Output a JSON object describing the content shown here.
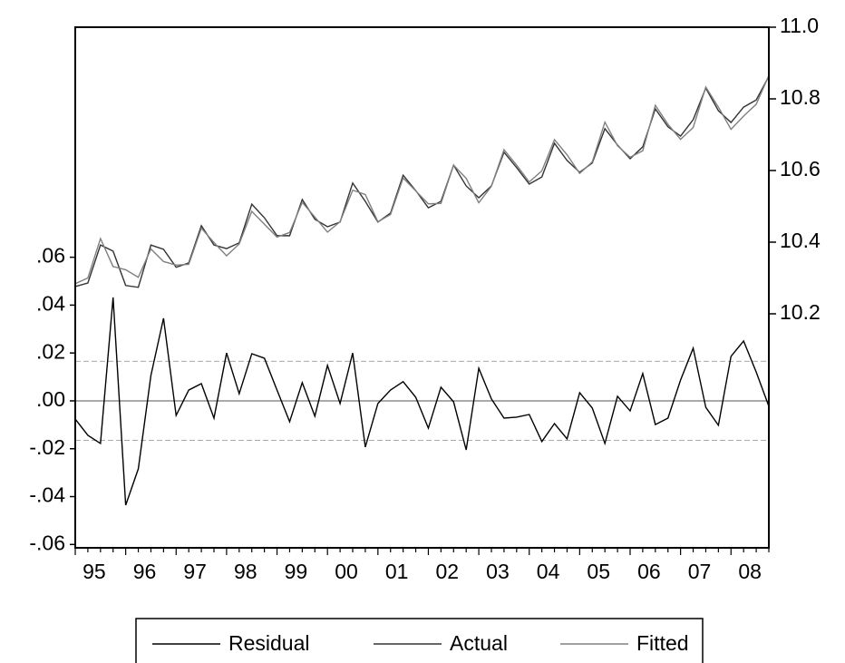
{
  "chart_data": {
    "type": "line",
    "categories": [
      "95",
      null,
      null,
      null,
      "96",
      null,
      null,
      null,
      "97",
      null,
      null,
      null,
      "98",
      null,
      null,
      null,
      "99",
      null,
      null,
      null,
      "00",
      null,
      null,
      null,
      "01",
      null,
      null,
      null,
      "02",
      null,
      null,
      null,
      "03",
      null,
      null,
      null,
      "04",
      null,
      null,
      null,
      "05",
      null,
      null,
      null,
      "06",
      null,
      null,
      null,
      "07",
      null,
      null,
      null,
      "08",
      null,
      null,
      null
    ],
    "series": [
      {
        "name": "Residual",
        "color": "#000000",
        "axis": "y",
        "values": [
          -0.0076,
          -0.0144,
          -0.0178,
          0.0432,
          -0.0436,
          -0.0284,
          0.0106,
          0.0345,
          -0.0061,
          0.0045,
          0.0072,
          -0.0072,
          0.02,
          0.003,
          0.0197,
          0.0178,
          0.0045,
          -0.0087,
          0.0076,
          -0.0064,
          0.0148,
          -0.0011,
          0.02,
          -0.0193,
          -0.0011,
          0.0045,
          0.008,
          0.0015,
          -0.0114,
          0.0057,
          -0.0004,
          -0.0205,
          0.0136,
          0.0008,
          -0.0072,
          -0.0068,
          -0.0057,
          -0.017,
          -0.0095,
          -0.0159,
          0.0034,
          -0.003,
          -0.0178,
          0.0019,
          -0.0042,
          0.0114,
          -0.0099,
          -0.0072,
          0.0087,
          0.022,
          -0.0027,
          -0.0102,
          0.0186,
          0.025,
          0.012,
          -0.0023
        ]
      },
      {
        "name": "Actual",
        "color": "#333333",
        "axis": "y2",
        "values": [
          10.276,
          10.286,
          10.392,
          10.375,
          10.279,
          10.274,
          10.392,
          10.38,
          10.33,
          10.342,
          10.446,
          10.392,
          10.382,
          10.398,
          10.506,
          10.468,
          10.418,
          10.418,
          10.519,
          10.464,
          10.443,
          10.456,
          10.565,
          10.514,
          10.456,
          10.481,
          10.587,
          10.544,
          10.496,
          10.514,
          10.615,
          10.557,
          10.524,
          10.557,
          10.651,
          10.608,
          10.562,
          10.582,
          10.676,
          10.628,
          10.595,
          10.621,
          10.717,
          10.671,
          10.633,
          10.666,
          10.772,
          10.722,
          10.696,
          10.742,
          10.83,
          10.767,
          10.734,
          10.777,
          10.797,
          10.863
        ]
      },
      {
        "name": "Fitted",
        "color": "#808080",
        "axis": "y2",
        "values": [
          10.284,
          10.3,
          10.41,
          10.332,
          10.323,
          10.302,
          10.381,
          10.346,
          10.336,
          10.338,
          10.439,
          10.399,
          10.362,
          10.395,
          10.486,
          10.45,
          10.414,
          10.427,
          10.511,
          10.47,
          10.428,
          10.457,
          10.545,
          10.533,
          10.457,
          10.477,
          10.579,
          10.543,
          10.507,
          10.508,
          10.615,
          10.578,
          10.51,
          10.556,
          10.658,
          10.615,
          10.568,
          10.599,
          10.686,
          10.644,
          10.592,
          10.624,
          10.735,
          10.669,
          10.637,
          10.655,
          10.782,
          10.729,
          10.687,
          10.72,
          10.833,
          10.777,
          10.715,
          10.752,
          10.785,
          10.865
        ]
      }
    ],
    "ylim": [
      -0.0614,
      0.1561
    ],
    "yticks": [
      {
        "value": 0.06,
        "label": ".06"
      },
      {
        "value": 0.04,
        "label": ".04"
      },
      {
        "value": 0.02,
        "label": ".02"
      },
      {
        "value": 0,
        "label": ".00"
      },
      {
        "value": -0.02,
        "label": "-.02"
      },
      {
        "value": -0.04,
        "label": "-.04"
      },
      {
        "value": -0.06,
        "label": "-.06"
      }
    ],
    "y2lim": [
      9.5468,
      11.0
    ],
    "y2ticks": [
      {
        "value": 11,
        "label": "11.0"
      },
      10.8,
      10.6,
      10.4,
      10.2
    ],
    "reference_lines": [
      {
        "value": 0,
        "style": "solid"
      },
      {
        "value": 0.0165,
        "style": "dashed"
      },
      {
        "value": -0.0165,
        "style": "dashed"
      }
    ],
    "legend": "bottom"
  }
}
